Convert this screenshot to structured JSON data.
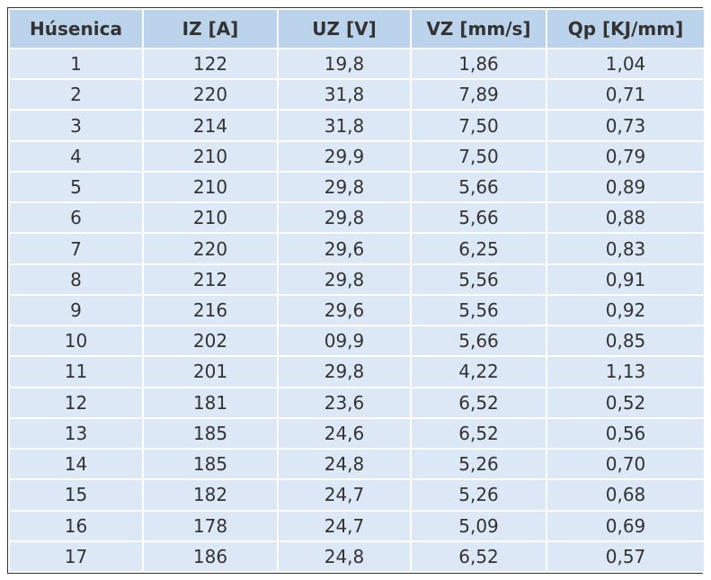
{
  "table": {
    "header": [
      "Húsenica",
      "IZ [A]",
      "UZ [V]",
      "VZ [mm/s]",
      "Qp [KJ/mm]"
    ],
    "rows": [
      [
        "1",
        "122",
        "19,8",
        "1,86",
        "1,04"
      ],
      [
        "2",
        "220",
        "31,8",
        "7,89",
        "0,71"
      ],
      [
        "3",
        "214",
        "31,8",
        "7,50",
        "0,73"
      ],
      [
        "4",
        "210",
        "29,9",
        "7,50",
        "0,79"
      ],
      [
        "5",
        "210",
        "29,8",
        "5,66",
        "0,89"
      ],
      [
        "6",
        "210",
        "29,8",
        "5,66",
        "0,88"
      ],
      [
        "7",
        "220",
        "29,6",
        "6,25",
        "0,83"
      ],
      [
        "8",
        "212",
        "29,8",
        "5,56",
        "0,91"
      ],
      [
        "9",
        "216",
        "29,6",
        "5,56",
        "0,92"
      ],
      [
        "10",
        "202",
        "09,9",
        "5,66",
        "0,85"
      ],
      [
        "11",
        "201",
        "29,8",
        "4,22",
        "1,13"
      ],
      [
        "12",
        "181",
        "23,6",
        "6,52",
        "0,52"
      ],
      [
        "13",
        "185",
        "24,6",
        "6,52",
        "0,56"
      ],
      [
        "14",
        "185",
        "24,8",
        "5,26",
        "0,70"
      ],
      [
        "15",
        "182",
        "24,7",
        "5,26",
        "0,68"
      ],
      [
        "16",
        "178",
        "24,7",
        "5,09",
        "0,69"
      ],
      [
        "17",
        "186",
        "24,8",
        "6,52",
        "0,57"
      ]
    ]
  }
}
